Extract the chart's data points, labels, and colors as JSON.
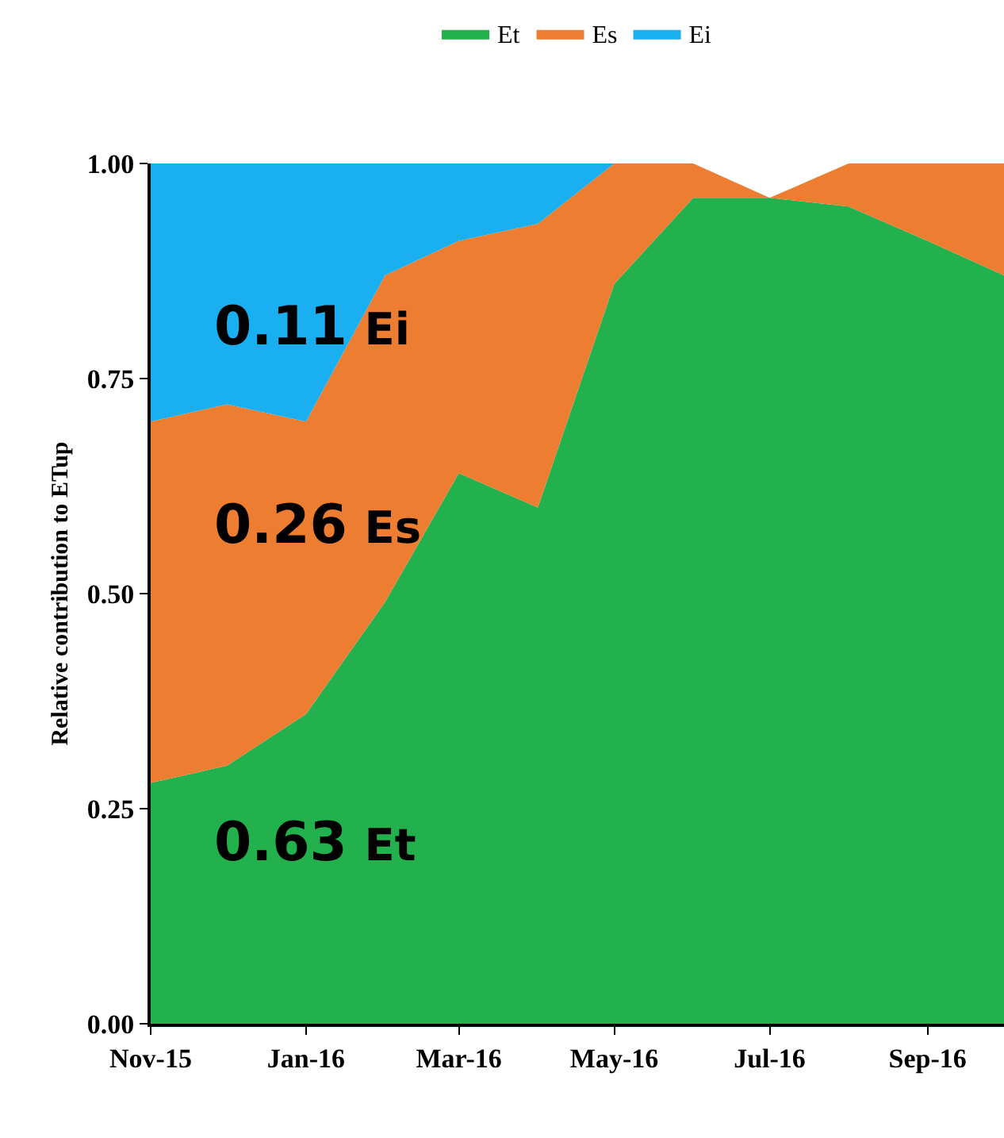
{
  "chart_data": {
    "type": "area",
    "stacked": true,
    "ylabel": "Relative contribution to ETup",
    "x": [
      "2015-11",
      "2015-12",
      "2016-01",
      "2016-02",
      "2016-03",
      "2016-04",
      "2016-05",
      "2016-06",
      "2016-07",
      "2016-08",
      "2016-09",
      "2016-10"
    ],
    "series": [
      {
        "name": "Et",
        "color": "#22b14c",
        "values": [
          0.28,
          0.3,
          0.36,
          0.49,
          0.64,
          0.6,
          0.86,
          0.96,
          0.96,
          0.95,
          0.91,
          0.87
        ]
      },
      {
        "name": "Es",
        "color": "#ed7d31",
        "values": [
          0.42,
          0.42,
          0.34,
          0.38,
          0.27,
          0.33,
          0.14,
          0.04,
          0,
          0.05,
          0.09,
          0.13
        ]
      },
      {
        "name": "Ei",
        "color": "#1aaff0",
        "values": [
          0.3,
          0.28,
          0.3,
          0.13,
          0.09,
          0.07,
          0,
          0,
          0,
          0,
          0,
          0
        ]
      }
    ],
    "xlim": [
      "2015-11-01",
      "2016-10-01"
    ],
    "xticks": [
      {
        "value": "2015-11",
        "label": "Nov-15"
      },
      {
        "value": "2016-01",
        "label": "Jan-16"
      },
      {
        "value": "2016-03",
        "label": "Mar-16"
      },
      {
        "value": "2016-05",
        "label": "May-16"
      },
      {
        "value": "2016-07",
        "label": "Jul-16"
      },
      {
        "value": "2016-09",
        "label": "Sep-16"
      }
    ],
    "ylim": [
      0,
      1
    ],
    "yticks": [
      {
        "value": 0,
        "label": "0.00"
      },
      {
        "value": 0.25,
        "label": "0.25"
      },
      {
        "value": 0.5,
        "label": "0.50"
      },
      {
        "value": 0.75,
        "label": "0.75"
      },
      {
        "value": 1,
        "label": "1.00"
      }
    ],
    "annotations": [
      "0.11 Ei",
      "0.26 Es",
      "0.63 Et"
    ],
    "legend": "top",
    "grid": false,
    "marker": "none"
  }
}
